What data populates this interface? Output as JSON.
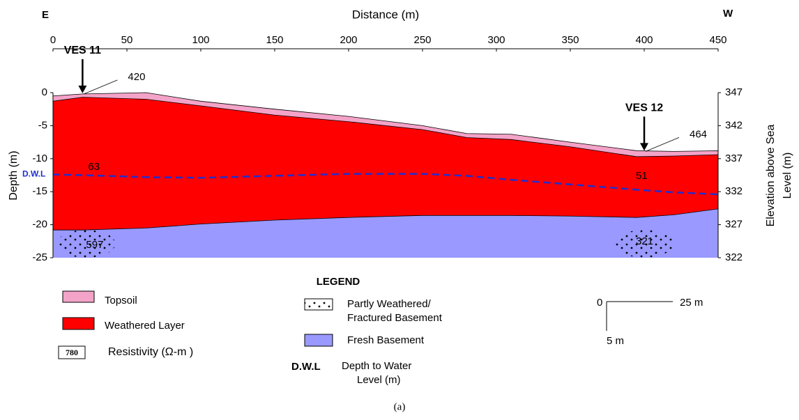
{
  "chart_data": {
    "type": "section",
    "xlabel": "Distance (m)",
    "ylabel": "Depth (m)",
    "y2label": [
      "Elevation above Sea",
      "Level (m)"
    ],
    "direction_left": "E",
    "direction_right": "W",
    "x": [
      0,
      20,
      63,
      100,
      150,
      200,
      250,
      280,
      310,
      350,
      395,
      420,
      450
    ],
    "series": [
      {
        "name": "Topsoil",
        "color": "#f4a3c8",
        "values": [
          -0.5,
          -0.2,
          0,
          -1.3,
          -2.5,
          -3.6,
          -5,
          -6.2,
          -6.3,
          -7.5,
          -8.8,
          -8.9,
          -8.8
        ]
      },
      {
        "name": "Weathered Layer",
        "color": "#ff0000",
        "values": [
          -1.3,
          -0.7,
          -1.0,
          -2.0,
          -3.4,
          -4.4,
          -5.6,
          -6.8,
          -7.1,
          -8.2,
          -9.7,
          -9.6,
          -9.4
        ]
      },
      {
        "name": "Fresh Basement",
        "color": "#9999ff",
        "values": [
          -20.8,
          -20.8,
          -20.5,
          -19.9,
          -19.3,
          -18.9,
          -18.6,
          -18.6,
          -18.6,
          -18.7,
          -18.9,
          -18.5,
          -17.6
        ]
      }
    ],
    "water_level": {
      "name": "D.W.L",
      "color": "#1f2fd0",
      "values": [
        -12.4,
        -12.5,
        -12.8,
        -12.9,
        -12.6,
        -12.3,
        -12.3,
        -12.6,
        -13.2,
        -13.9,
        -14.7,
        -15.1,
        -15.4
      ]
    },
    "xlim": [
      0,
      450
    ],
    "xticks": [
      0,
      50,
      100,
      150,
      200,
      250,
      300,
      350,
      400,
      450
    ],
    "ylim": [
      -25,
      0
    ],
    "yticks": [
      -25,
      -20,
      -15,
      -10,
      -5,
      0
    ],
    "y2lim": [
      322,
      347
    ],
    "y2ticks": [
      322,
      327,
      332,
      337,
      342,
      347
    ],
    "ves": [
      {
        "label": "VES 11",
        "x": 20,
        "topsoil": 420,
        "weathered": 63,
        "basement": 597
      },
      {
        "label": "VES 12",
        "x": 400,
        "topsoil": 464,
        "weathered": 51,
        "basement": 321
      }
    ],
    "legend": {
      "title": "LEGEND",
      "topsoil": "Topsoil",
      "weathered": "Weathered Layer",
      "resistivity_sample": "780",
      "resistivity": "Resistivity (Ω-m )",
      "partly": [
        "Partly Weathered/",
        "Fractured Basement"
      ],
      "fresh": "Fresh Basement",
      "dwl": "D.W.L",
      "dwl_text": [
        "Depth to Water",
        "Level (m)"
      ]
    },
    "scale": {
      "origin": "0",
      "horizontal": "25 m",
      "vertical": "5 m"
    },
    "caption": "(a)"
  }
}
